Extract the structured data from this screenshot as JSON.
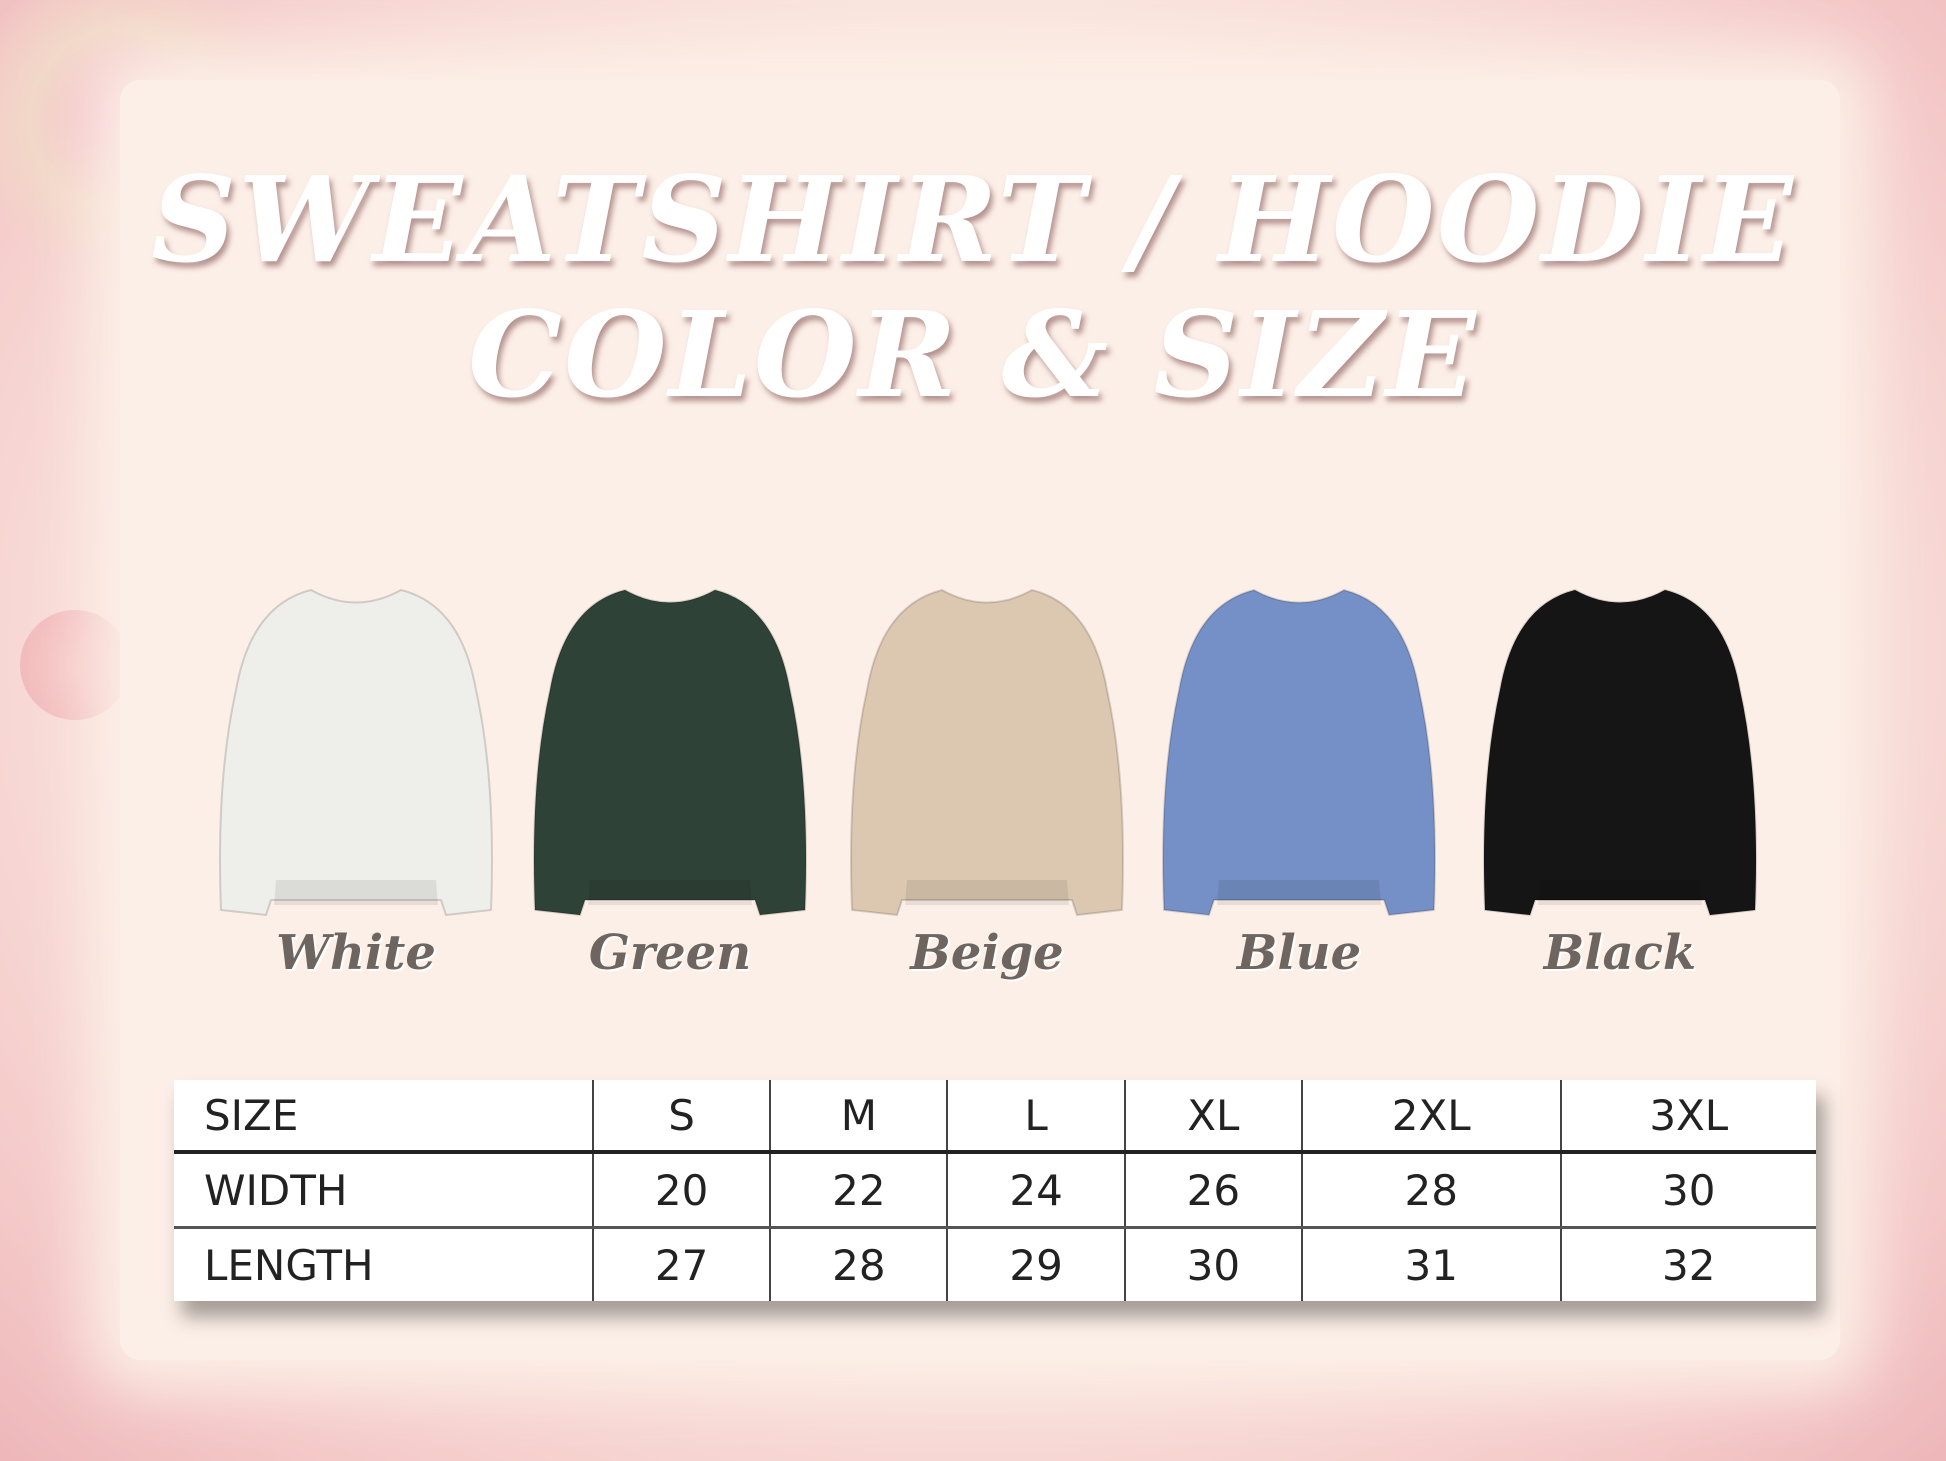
{
  "title": {
    "line1": "SWEATSHIRT / HOODIE",
    "line2": "COLOR & SIZE"
  },
  "colors": [
    {
      "label": "White",
      "hex": "#eeeeea"
    },
    {
      "label": "Green",
      "hex": "#2f4237"
    },
    {
      "label": "Beige",
      "hex": "#dcc8b0"
    },
    {
      "label": "Blue",
      "hex": "#7490c6"
    },
    {
      "label": "Black",
      "hex": "#151515"
    }
  ],
  "size_table": {
    "header": [
      "SIZE",
      "S",
      "M",
      "L",
      "XL",
      "2XL",
      "3XL"
    ],
    "rows": [
      [
        "WIDTH",
        "20",
        "22",
        "24",
        "26",
        "28",
        "30"
      ],
      [
        "LENGTH",
        "27",
        "28",
        "29",
        "30",
        "31",
        "32"
      ]
    ]
  }
}
